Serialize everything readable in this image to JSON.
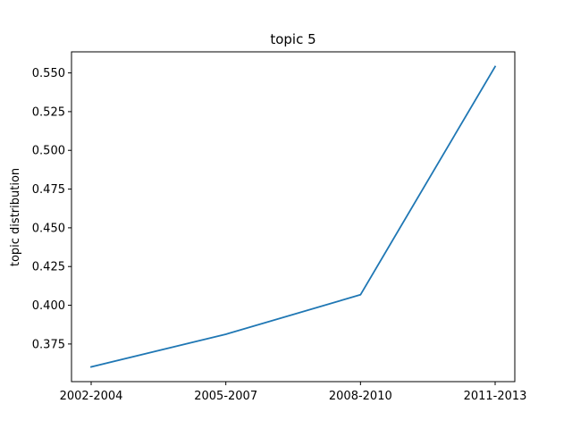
{
  "chart_data": {
    "type": "line",
    "title": "topic 5",
    "xlabel": "",
    "ylabel": "topic distribution",
    "categories": [
      "2002-2004",
      "2005-2007",
      "2008-2010",
      "2011-2013"
    ],
    "series": [
      {
        "name": "topic 5",
        "values": [
          0.3602,
          0.3813,
          0.4068,
          0.5541
        ],
        "color": "#1f77b4"
      }
    ],
    "ylim": [
      0.3507,
      0.5636
    ],
    "yticks": [
      0.375,
      0.4,
      0.425,
      0.45,
      0.475,
      0.5,
      0.525,
      0.55
    ],
    "ytick_labels": [
      "0.375",
      "0.400",
      "0.425",
      "0.450",
      "0.475",
      "0.500",
      "0.525",
      "0.550"
    ],
    "grid": false
  }
}
